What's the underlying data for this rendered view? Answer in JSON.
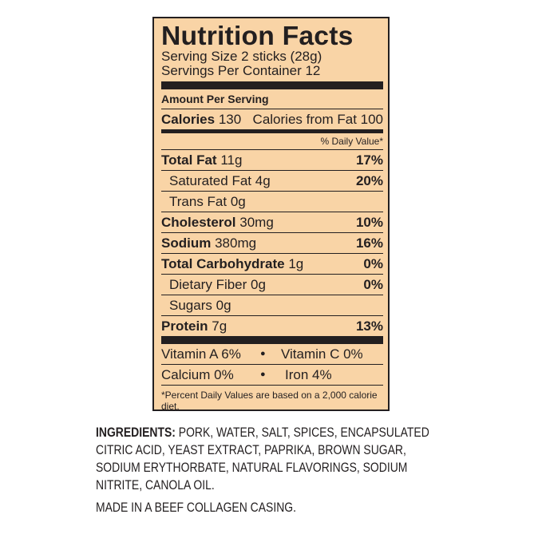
{
  "label": {
    "title": "Nutrition Facts",
    "serving_size": "Serving Size 2 sticks (28g)",
    "servings_per_container": "Servings Per Container 12",
    "amount_per_serving": "Amount Per Serving",
    "calories_label": "Calories",
    "calories_value": "130",
    "calories_from_fat": "Calories from Fat 100",
    "daily_value_header": "% Daily Value*",
    "nutrients": [
      {
        "name": "Total Fat",
        "amount": "11g",
        "dv": "17%"
      },
      {
        "name": "Saturated Fat",
        "amount": "4g",
        "dv": "20%"
      },
      {
        "name": "Trans Fat",
        "amount": "0g",
        "dv": ""
      },
      {
        "name": "Cholesterol",
        "amount": "30mg",
        "dv": "10%"
      },
      {
        "name": "Sodium",
        "amount": "380mg",
        "dv": "16%"
      },
      {
        "name": "Total Carbohydrate",
        "amount": "1g",
        "dv": "0%"
      },
      {
        "name": "Dietary Fiber",
        "amount": "0g",
        "dv": "0%"
      },
      {
        "name": "Sugars",
        "amount": "0g",
        "dv": ""
      },
      {
        "name": "Protein",
        "amount": "7g",
        "dv": "13%"
      }
    ],
    "vitamin_a": "Vitamin A 6%",
    "vitamin_c": "Vitamin C 0%",
    "calcium": "Calcium 0%",
    "iron": "Iron 4%",
    "bullet": "●",
    "footnote": "*Percent Daily Values are based on a 2,000 calorie diet."
  },
  "ingredients": {
    "label": "INGREDIENTS:",
    "text": " PORK, WATER, SALT, SPICES, ENCAPSULATED CITRIC ACID, YEAST EXTRACT, PAPRIKA, BROWN SUGAR, SODIUM ERYTHORBATE, NATURAL FLAVORINGS, SODIUM NITRITE, CANOLA OIL.",
    "casing": "MADE IN A BEEF COLLAGEN CASING."
  },
  "colors": {
    "label_bg": "#f9d4a6",
    "ink": "#231f20"
  }
}
